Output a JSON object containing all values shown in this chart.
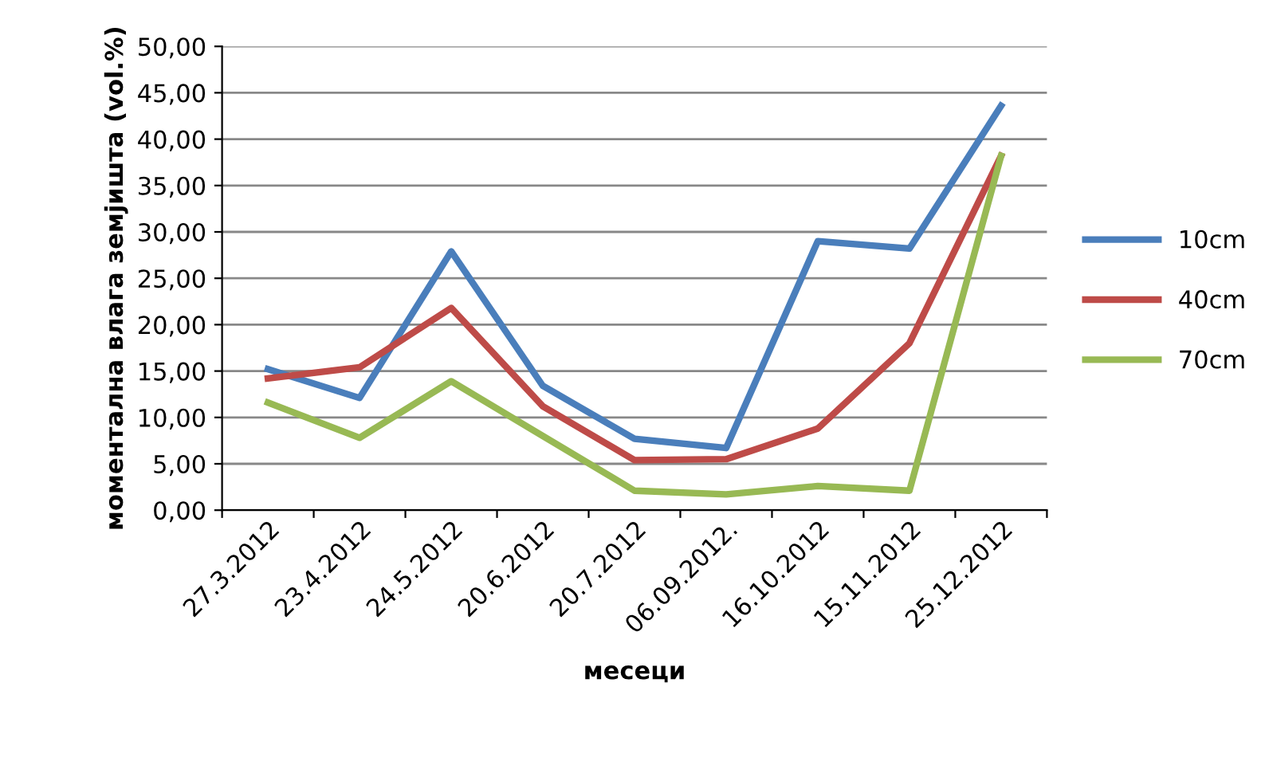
{
  "chart_data": {
    "type": "line",
    "xlabel": "месеци",
    "ylabel": "моментална влага земјишта (vol.%)",
    "categories": [
      "27.3.2012",
      "23.4.2012",
      "24.5.2012",
      "20.6.2012",
      "20.7.2012",
      "06.09.2012.",
      "16.10.2012",
      "15.11.2012",
      "25.12.2012"
    ],
    "series": [
      {
        "name": "10cm",
        "color": "#4a7ebb",
        "values": [
          15.2,
          12.1,
          27.9,
          13.4,
          7.7,
          6.7,
          29.0,
          28.2,
          43.6
        ]
      },
      {
        "name": "40cm",
        "color": "#be4b48",
        "values": [
          14.2,
          15.4,
          21.8,
          11.2,
          5.4,
          5.5,
          8.8,
          18.0,
          38.2
        ]
      },
      {
        "name": "70cm",
        "color": "#98b954",
        "values": [
          11.6,
          7.8,
          13.9,
          8.0,
          2.1,
          1.7,
          2.6,
          2.1,
          38.2
        ]
      }
    ],
    "ylim": [
      0,
      50
    ],
    "yticks": [
      {
        "value": 0,
        "label": "0,00"
      },
      {
        "value": 5,
        "label": "5,00"
      },
      {
        "value": 10,
        "label": "10,00"
      },
      {
        "value": 15,
        "label": "15,00"
      },
      {
        "value": 20,
        "label": "20,00"
      },
      {
        "value": 25,
        "label": "25,00"
      },
      {
        "value": 30,
        "label": "30,00"
      },
      {
        "value": 35,
        "label": "35,00"
      },
      {
        "value": 40,
        "label": "40,00"
      },
      {
        "value": 45,
        "label": "45,00"
      },
      {
        "value": 50,
        "label": "50,00"
      }
    ],
    "grid": "y",
    "legend": "right",
    "marker": "none",
    "line_style": "solid"
  }
}
